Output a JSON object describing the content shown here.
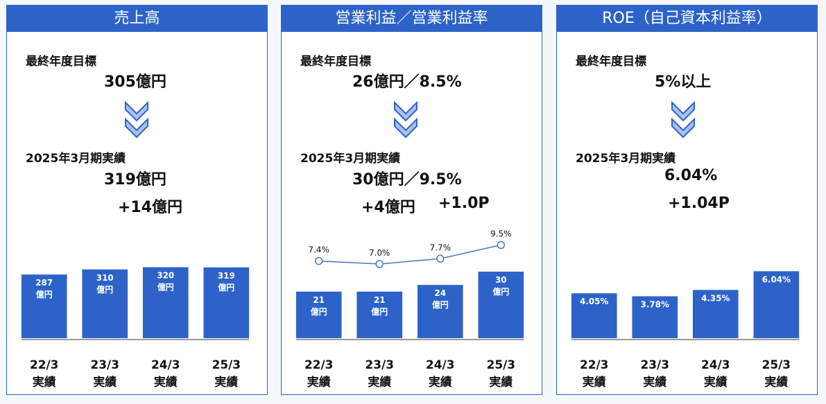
{
  "colors": {
    "accent": "#2d63c8",
    "bar": "#2d63c8",
    "line": "#4a74c8"
  },
  "panels": [
    {
      "title": "売上高",
      "target_label": "最終年度目標",
      "target_value": "305億円",
      "result_label": "2025年3月期実績",
      "result_value": "319億円",
      "diff": "+14億円"
    },
    {
      "title": "営業利益／営業利益率",
      "target_label": "最終年度目標",
      "target_value": "26億円／8.5%",
      "result_label": "2025年3月期実績",
      "result_value": "30億円／9.5%",
      "diff_1": "+4億円",
      "diff_2": "+1.0P"
    },
    {
      "title": "ROE（自己資本利益率）",
      "target_label": "最終年度目標",
      "target_value": "5%以上",
      "result_label": "2025年3月期実績",
      "result_value": "6.04%",
      "diff": "+1.04P"
    }
  ],
  "chart_data": [
    {
      "type": "bar",
      "categories": [
        "22/3 実績",
        "23/3 実績",
        "24/3 実績",
        "25/3 実績"
      ],
      "values": [
        287,
        310,
        320,
        319
      ],
      "bar_labels": [
        [
          "287",
          "億円"
        ],
        [
          "310",
          "億円"
        ],
        [
          "320",
          "億円"
        ],
        [
          "319",
          "億円"
        ]
      ],
      "cat_labels": [
        [
          "22/3",
          "実績"
        ],
        [
          "23/3",
          "実績"
        ],
        [
          "24/3",
          "実績"
        ],
        [
          "25/3",
          "実績"
        ]
      ],
      "ylim": [
        0,
        350
      ]
    },
    {
      "type": "bar",
      "categories": [
        "22/3 実績",
        "23/3 実績",
        "24/3 実績",
        "25/3 実績"
      ],
      "values": [
        21,
        21,
        24,
        30
      ],
      "bar_labels": [
        [
          "21",
          "億円"
        ],
        [
          "21",
          "億円"
        ],
        [
          "24",
          "億円"
        ],
        [
          "30",
          "億円"
        ]
      ],
      "line_values": [
        7.4,
        7.0,
        7.7,
        9.5
      ],
      "line_labels": [
        "7.4%",
        "7.0%",
        "7.7%",
        "9.5%"
      ],
      "cat_labels": [
        [
          "22/3",
          "実績"
        ],
        [
          "23/3",
          "実績"
        ],
        [
          "24/3",
          "実績"
        ],
        [
          "25/3",
          "実績"
        ]
      ],
      "ylim": [
        0,
        35
      ],
      "line_ylim": [
        4,
        10
      ]
    },
    {
      "type": "bar",
      "categories": [
        "22/3 実績",
        "23/3 実績",
        "24/3 実績",
        "25/3 実績"
      ],
      "values": [
        4.05,
        3.78,
        4.35,
        6.04
      ],
      "bar_labels": [
        [
          "4.05%"
        ],
        [
          "3.78%"
        ],
        [
          "4.35%"
        ],
        [
          "6.04%"
        ]
      ],
      "cat_labels": [
        [
          "22/3",
          "実績"
        ],
        [
          "23/3",
          "実績"
        ],
        [
          "24/3",
          "実績"
        ],
        [
          "25/3",
          "実績"
        ]
      ],
      "ylim": [
        0,
        7
      ]
    }
  ]
}
